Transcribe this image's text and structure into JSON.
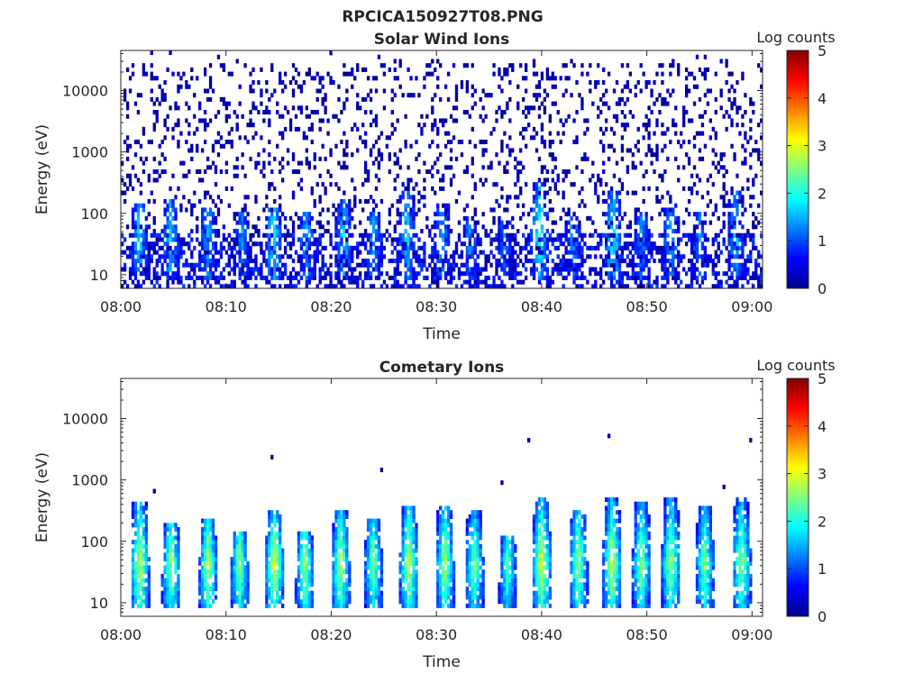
{
  "figure_title": "RPCICA150927T08.PNG",
  "colors": {
    "axis": "#262626",
    "background": "#ffffff",
    "colormap": "jet"
  },
  "chart_data": [
    {
      "type": "heatmap",
      "title": "Solar Wind Ions",
      "xlabel": "Time",
      "ylabel": "Energy (eV)",
      "xlim": [
        "08:00",
        "09:01"
      ],
      "ylim": [
        6,
        45000
      ],
      "yscale": "log",
      "x_ticks": [
        "08:00",
        "08:10",
        "08:20",
        "08:30",
        "08:40",
        "08:50",
        "09:00"
      ],
      "y_ticks": [
        10,
        100,
        1000,
        10000
      ],
      "y_tick_labels": [
        "10",
        "100",
        "1000",
        "10000"
      ],
      "colorbar": {
        "label": "Log counts",
        "range": [
          0,
          5
        ],
        "ticks": [
          "0",
          "1",
          "2",
          "3",
          "4",
          "5"
        ]
      },
      "pattern": "sparse",
      "background_density": 0.16,
      "low_energy_density": 0.42,
      "bursts": [
        {
          "t": 1.8,
          "e_high": 150,
          "peak": 1.8
        },
        {
          "t": 4.7,
          "e_high": 160,
          "peak": 1.7
        },
        {
          "t": 8.3,
          "e_high": 130,
          "peak": 1.6
        },
        {
          "t": 11.5,
          "e_high": 100,
          "peak": 1.4
        },
        {
          "t": 14.5,
          "e_high": 120,
          "peak": 2.0
        },
        {
          "t": 17.7,
          "e_high": 100,
          "peak": 1.6
        },
        {
          "t": 21.2,
          "e_high": 180,
          "peak": 1.8
        },
        {
          "t": 24.0,
          "e_high": 110,
          "peak": 1.5
        },
        {
          "t": 27.2,
          "e_high": 220,
          "peak": 1.8
        },
        {
          "t": 30.5,
          "e_high": 140,
          "peak": 1.5
        },
        {
          "t": 33.2,
          "e_high": 90,
          "peak": 1.4
        },
        {
          "t": 36.5,
          "e_high": 80,
          "peak": 1.3
        },
        {
          "t": 39.8,
          "e_high": 300,
          "peak": 2.1
        },
        {
          "t": 43.0,
          "e_high": 90,
          "peak": 1.4
        },
        {
          "t": 46.8,
          "e_high": 250,
          "peak": 2.0
        },
        {
          "t": 49.5,
          "e_high": 100,
          "peak": 1.4
        },
        {
          "t": 52.3,
          "e_high": 140,
          "peak": 1.6
        },
        {
          "t": 55.0,
          "e_high": 110,
          "peak": 1.4
        },
        {
          "t": 58.5,
          "e_high": 250,
          "peak": 1.6
        }
      ]
    },
    {
      "type": "heatmap",
      "title": "Cometary Ions",
      "xlabel": "Time",
      "ylabel": "Energy (eV)",
      "xlim": [
        "08:00",
        "09:01"
      ],
      "ylim": [
        6,
        45000
      ],
      "yscale": "log",
      "x_ticks": [
        "08:00",
        "08:10",
        "08:20",
        "08:30",
        "08:40",
        "08:50",
        "09:00"
      ],
      "y_ticks": [
        10,
        100,
        1000,
        10000
      ],
      "y_tick_labels": [
        "10",
        "100",
        "1000",
        "10000"
      ],
      "colorbar": {
        "label": "Log counts",
        "range": [
          0,
          5
        ],
        "ticks": [
          "0",
          "1",
          "2",
          "3",
          "4",
          "5"
        ]
      },
      "pattern": "bursts",
      "background_density": 0.002,
      "low_energy_density": 0.0,
      "bursts": [
        {
          "t": 1.8,
          "e_high": 450,
          "peak": 3.0
        },
        {
          "t": 4.8,
          "e_high": 200,
          "peak": 2.8
        },
        {
          "t": 8.3,
          "e_high": 250,
          "peak": 2.9
        },
        {
          "t": 11.3,
          "e_high": 150,
          "peak": 2.7
        },
        {
          "t": 14.6,
          "e_high": 300,
          "peak": 3.1
        },
        {
          "t": 17.5,
          "e_high": 150,
          "peak": 2.8
        },
        {
          "t": 20.9,
          "e_high": 300,
          "peak": 2.9
        },
        {
          "t": 24.0,
          "e_high": 250,
          "peak": 2.6
        },
        {
          "t": 27.4,
          "e_high": 350,
          "peak": 3.0
        },
        {
          "t": 30.8,
          "e_high": 400,
          "peak": 2.8
        },
        {
          "t": 33.6,
          "e_high": 300,
          "peak": 2.6
        },
        {
          "t": 36.8,
          "e_high": 120,
          "peak": 2.4
        },
        {
          "t": 40.0,
          "e_high": 550,
          "peak": 3.1
        },
        {
          "t": 43.5,
          "e_high": 300,
          "peak": 2.8
        },
        {
          "t": 46.7,
          "e_high": 500,
          "peak": 3.0
        },
        {
          "t": 49.5,
          "e_high": 450,
          "peak": 2.7
        },
        {
          "t": 52.3,
          "e_high": 500,
          "peak": 2.8
        },
        {
          "t": 55.5,
          "e_high": 400,
          "peak": 2.6
        },
        {
          "t": 59.0,
          "e_high": 500,
          "peak": 2.8
        }
      ]
    }
  ]
}
